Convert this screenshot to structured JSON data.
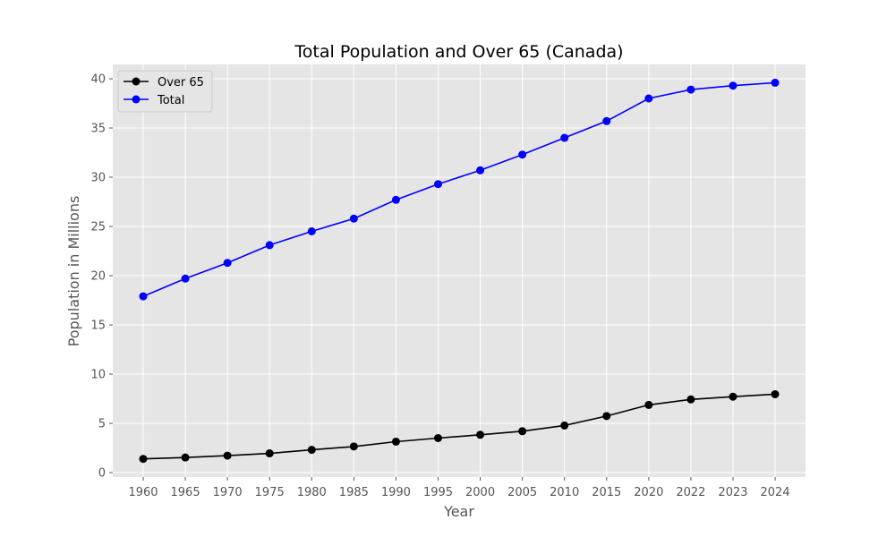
{
  "chart_data": {
    "type": "line",
    "title": "Total Population and Over 65 (Canada)",
    "xlabel": "Year",
    "ylabel": "Population in Millions",
    "categories": [
      "1960",
      "1965",
      "1970",
      "1975",
      "1980",
      "1985",
      "1990",
      "1995",
      "2000",
      "2005",
      "2010",
      "2015",
      "2020",
      "2022",
      "2023",
      "2024"
    ],
    "ylim": [
      0,
      40
    ],
    "yticks": [
      0,
      5,
      10,
      15,
      20,
      25,
      30,
      35,
      40
    ],
    "grid": true,
    "legend_position": "top-left",
    "series": [
      {
        "name": "Over 65",
        "color": "#000000",
        "values": [
          1.39,
          1.53,
          1.72,
          1.95,
          2.31,
          2.65,
          3.14,
          3.5,
          3.84,
          4.2,
          4.78,
          5.74,
          6.87,
          7.43,
          7.71,
          7.96
        ]
      },
      {
        "name": "Total",
        "color": "#0000ff",
        "values": [
          17.9,
          19.7,
          21.3,
          23.1,
          24.5,
          25.8,
          27.7,
          29.3,
          30.7,
          32.3,
          34.0,
          35.7,
          38.0,
          38.9,
          39.3,
          39.6
        ]
      }
    ]
  }
}
